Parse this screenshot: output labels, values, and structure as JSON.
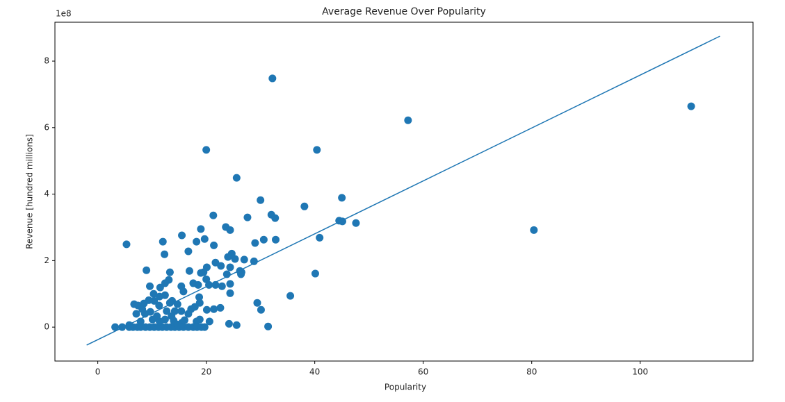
{
  "chart_data": {
    "type": "scatter",
    "title": "Average Revenue Over Popularity",
    "x_label": "Popularity",
    "y_label": "Revenue [hundred millions]",
    "y_offset_text": "1e8",
    "xlim": [
      -7.9,
      120.8
    ],
    "ylim": [
      -1.02,
      9.17
    ],
    "xticks": [
      0,
      20,
      40,
      60,
      80,
      100
    ],
    "yticks": [
      0,
      2,
      4,
      6,
      8
    ],
    "points": {
      "color": "#1f77b4",
      "x": [
        32.2,
        109.4,
        57.2,
        80.4,
        20,
        40.4,
        25.6,
        45,
        38.1,
        30,
        47.6,
        44.5,
        45.1,
        40.9,
        40.1,
        35.5,
        31.4,
        25.6,
        24.2,
        5.3,
        21.3,
        32,
        32.7,
        32.8,
        30.6,
        27.6,
        23.6,
        24.4,
        19,
        19.7,
        18.2,
        15.5,
        12,
        12.3,
        8.97,
        16.7,
        21.4,
        29,
        28.8,
        27,
        24.7,
        24,
        25.3,
        26.2,
        26.5,
        24.4,
        23.8,
        22.7,
        21.7,
        20.1,
        19.5,
        19,
        20,
        22.9,
        21.7,
        20.5,
        24.4,
        24.4,
        26.4,
        29.4,
        30.1,
        22.6,
        21.4,
        20.1,
        18.8,
        18.7,
        18.5,
        17.6,
        15.4,
        15.8,
        16.9,
        13.3,
        13.1,
        12.4,
        11.5,
        10.3,
        9.6,
        10.4,
        11.4,
        13.7,
        14.7,
        15.4,
        16.7,
        17.2,
        14.2,
        12.7,
        11.3,
        8.5,
        7.4,
        6.7,
        7.1,
        8.7,
        9.7,
        10.9,
        12.4,
        14,
        15.5,
        18.2,
        18.8,
        20.6,
        7.9,
        5.8,
        3.2,
        4.5,
        5.8,
        6.5,
        7.3,
        7.9,
        8.8,
        9.6,
        10.4,
        11.2,
        11.9,
        12.7,
        13.5,
        14.2,
        15,
        15.8,
        16.7,
        17.6,
        18.3,
        19.1,
        19.7,
        10.1,
        11.4,
        13.6,
        14.7,
        16,
        8.2,
        9.4,
        12.4,
        13.3,
        17.9
      ],
      "values": [
        7.48,
        6.64,
        6.22,
        2.92,
        5.33,
        5.33,
        4.49,
        3.89,
        3.63,
        3.82,
        3.13,
        3.2,
        3.18,
        2.69,
        1.61,
        0.94,
        0.02,
        0.06,
        0.1,
        2.49,
        3.36,
        3.38,
        3.28,
        2.63,
        2.63,
        3.3,
        3.01,
        2.92,
        2.95,
        2.65,
        2.57,
        2.76,
        2.57,
        2.19,
        1.71,
        2.28,
        2.46,
        2.53,
        1.98,
        2.03,
        2.21,
        2.11,
        2.05,
        1.69,
        1.65,
        1.8,
        1.59,
        1.84,
        1.94,
        1.8,
        1.65,
        1.63,
        1.44,
        1.23,
        1.27,
        1.27,
        1.3,
        1.02,
        1.59,
        0.73,
        0.52,
        0.58,
        0.54,
        0.52,
        0.73,
        0.9,
        1.27,
        1.32,
        1.23,
        1.07,
        1.69,
        1.65,
        1.42,
        1.32,
        1.19,
        1.0,
        1.23,
        0.79,
        0.92,
        0.79,
        0.69,
        0.48,
        0.4,
        0.54,
        0.48,
        0.48,
        0.65,
        0.71,
        0.65,
        0.69,
        0.4,
        0.4,
        0.46,
        0.33,
        0.23,
        0.19,
        0.13,
        0.17,
        0.23,
        0.17,
        0.17,
        0.06,
        0,
        0,
        0,
        0,
        0,
        0,
        0,
        0,
        0,
        0,
        0,
        0,
        0,
        0,
        0,
        0,
        0,
        0,
        0,
        0,
        0,
        0.23,
        0.17,
        0.33,
        0.08,
        0.21,
        0.54,
        0.81,
        0.96,
        0.73,
        0.61
      ]
    },
    "trend_line": {
      "color": "#1f77b4",
      "x": [
        -2.05,
        114.7
      ],
      "values": [
        -0.54,
        8.75
      ]
    }
  }
}
